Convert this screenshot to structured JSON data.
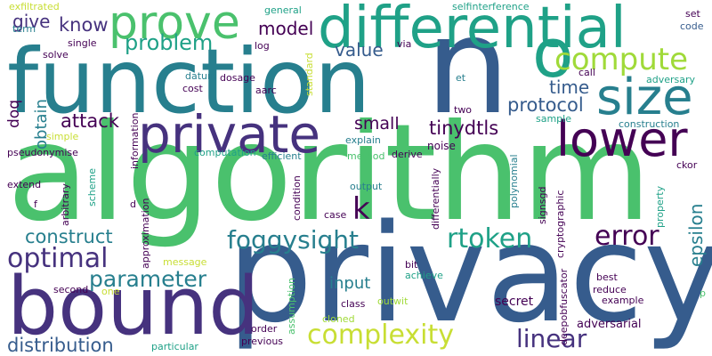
{
  "palette": {
    "dark_purple": "#440154",
    "indigo": "#46327e",
    "blue": "#365c8d",
    "teal_blue": "#277f8e",
    "teal": "#1fa187",
    "green": "#4ac16d",
    "light_green": "#a0da39",
    "yellow": "#c8de34"
  },
  "words": {
    "algorithm": "algorithm",
    "privacy": "privacy",
    "function": "function",
    "n": "n",
    "differential": "differential",
    "bound": "bound",
    "prove": "prove",
    "private": "private",
    "lower": "lower",
    "size": "size",
    "o": "o",
    "compute": "compute",
    "complexity": "complexity",
    "optimal": "optimal",
    "error": "error",
    "rtoken": "rtoken",
    "foggysight": "foggysight",
    "linear": "linear",
    "parameter": "parameter",
    "problem": "problem",
    "construct": "construct",
    "distribution": "distribution",
    "k": "k",
    "protocol": "protocol",
    "tinydtls": "tinydtls",
    "attack": "attack",
    "time": "time",
    "value": "value",
    "model": "model",
    "know": "know",
    "give": "give",
    "small": "small",
    "input": "input",
    "epsilon": "epsilon",
    "obtain": "obtain",
    "doq": "doq",
    "adversarial": "adversarial",
    "secret": "secret",
    "exfiltrated": "exfiltrated",
    "general": "general",
    "selfinterference": "selfinterference",
    "set": "set",
    "code": "code",
    "term": "term",
    "single": "single",
    "log": "log",
    "via": "via",
    "solve": "solve",
    "standard": "standard",
    "call": "call",
    "adversary": "adversary",
    "et": "et",
    "datum": "datum",
    "cost": "cost",
    "dosage": "dosage",
    "aarc": "aarc",
    "information": "information",
    "two": "two",
    "sample": "sample",
    "construction": "construction",
    "simple": "simple",
    "explain": "explain",
    "noise": "noise",
    "pseudonymise": "pseudonymise",
    "computation": "computation",
    "efficient": "efficient",
    "method": "method",
    "derive": "derive",
    "ckor": "ckor",
    "extend": "extend",
    "scheme": "scheme",
    "arbitrary": "arbitrary",
    "approximation": "approximation",
    "output": "output",
    "condition": "condition",
    "differentially": "differentially",
    "polynomial": "polynomial",
    "cryptographic": "cryptographic",
    "property": "property",
    "f": "f",
    "d": "d",
    "signsgd": "signsgd",
    "case": "case",
    "bit": "bit",
    "achieve": "achieve",
    "message": "message",
    "second": "second",
    "one": "one",
    "assumption": "assumption",
    "class": "class",
    "cloned": "cloned",
    "outwit": "outwit",
    "order": "order",
    "previous": "previous",
    "particular": "particular",
    "deepobfuscator": "deepobfuscator",
    "best": "best",
    "reduce": "reduce",
    "example": "example",
    "p": "p"
  }
}
